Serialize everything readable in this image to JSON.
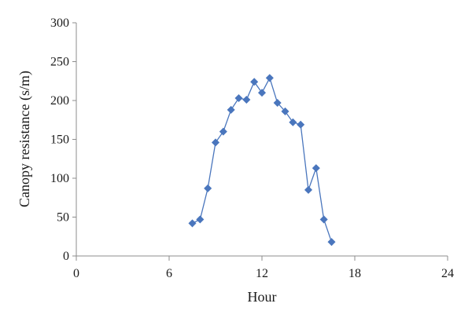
{
  "chart_data": {
    "type": "line",
    "title": "",
    "xlabel": "Hour",
    "ylabel": "Canopy resistance (s/m)",
    "xlim": [
      0,
      24
    ],
    "ylim": [
      0,
      300
    ],
    "xticks": [
      0,
      6,
      12,
      18,
      24
    ],
    "yticks": [
      0,
      50,
      100,
      150,
      200,
      250,
      300
    ],
    "grid": false,
    "legend": "none",
    "series": [
      {
        "color": "#4a76bd",
        "marker": "diamond",
        "x": [
          7.5,
          8.0,
          8.5,
          9.0,
          9.5,
          10.0,
          10.5,
          11.0,
          11.5,
          12.0,
          12.5,
          13.0,
          13.5,
          14.0,
          14.5,
          15.0,
          15.5,
          16.0,
          16.5
        ],
        "y": [
          42,
          47,
          87,
          146,
          160,
          188,
          203,
          201,
          224,
          210,
          229,
          197,
          186,
          172,
          169,
          85,
          113,
          47,
          18
        ]
      }
    ]
  }
}
